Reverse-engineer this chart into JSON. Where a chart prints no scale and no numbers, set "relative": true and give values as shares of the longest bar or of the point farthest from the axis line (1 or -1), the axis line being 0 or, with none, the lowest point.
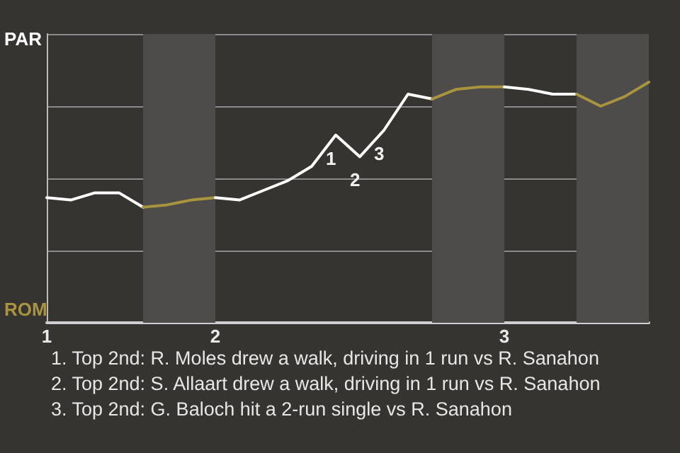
{
  "chart_data": {
    "type": "line",
    "relative": true,
    "categories": [
      "1",
      null,
      null,
      null,
      null,
      null,
      null,
      "2",
      null,
      null,
      null,
      null,
      null,
      null,
      null,
      null,
      null,
      null,
      null,
      "3",
      null,
      null,
      null,
      null,
      null,
      null
    ],
    "grid": "y",
    "marker": "none",
    "line_style": "solid",
    "series": [
      {
        "color": "#ffffff",
        "values": [
          0.52,
          0.51,
          0.54,
          0.54,
          0.48,
          null,
          null,
          null,
          null,
          null,
          null,
          null,
          null,
          null,
          null,
          null,
          null,
          null,
          null,
          null,
          null,
          null,
          null,
          null,
          null,
          null
        ]
      },
      {
        "color": "#a8933f",
        "values": [
          null,
          null,
          null,
          null,
          0.48,
          0.49,
          0.51,
          0.52,
          null,
          null,
          null,
          null,
          null,
          null,
          null,
          null,
          null,
          null,
          null,
          null,
          null,
          null,
          null,
          null,
          null,
          null
        ]
      },
      {
        "color": "#ffffff",
        "values": [
          null,
          null,
          null,
          null,
          null,
          null,
          null,
          0.52,
          0.51,
          0.55,
          0.59,
          0.65,
          0.78,
          0.69,
          0.8,
          0.95,
          0.93,
          null,
          null,
          null,
          null,
          null,
          null,
          null,
          null,
          null
        ]
      },
      {
        "color": "#a8933f",
        "values": [
          null,
          null,
          null,
          null,
          null,
          null,
          null,
          null,
          null,
          null,
          null,
          null,
          null,
          null,
          null,
          null,
          0.93,
          0.97,
          0.98,
          0.98,
          null,
          null,
          null,
          null,
          null,
          null
        ]
      },
      {
        "color": "#ffffff",
        "values": [
          null,
          null,
          null,
          null,
          null,
          null,
          null,
          null,
          null,
          null,
          null,
          null,
          null,
          null,
          null,
          null,
          null,
          null,
          null,
          0.98,
          0.97,
          0.95,
          0.95,
          null,
          null,
          null
        ]
      },
      {
        "color": "#a8933f",
        "values": [
          null,
          null,
          null,
          null,
          null,
          null,
          null,
          null,
          null,
          null,
          null,
          null,
          null,
          null,
          null,
          null,
          null,
          null,
          null,
          null,
          null,
          null,
          0.95,
          0.9,
          0.94,
          1
        ]
      }
    ],
    "annotations": [
      "PAR",
      "ROM",
      {
        "text": "1",
        "y": 0.78
      },
      {
        "text": "2",
        "y": 0.69
      },
      {
        "text": "3",
        "y": 0.8
      },
      "1. Top 2nd: R. Moles drew a walk, driving in 1 run vs R. Sanahon",
      "2. Top 2nd: S. Allaart drew a walk, driving in 1 run vs R. Sanahon",
      "3. Top 2nd: G. Baloch hit a 2-run single vs R. Sanahon"
    ]
  }
}
